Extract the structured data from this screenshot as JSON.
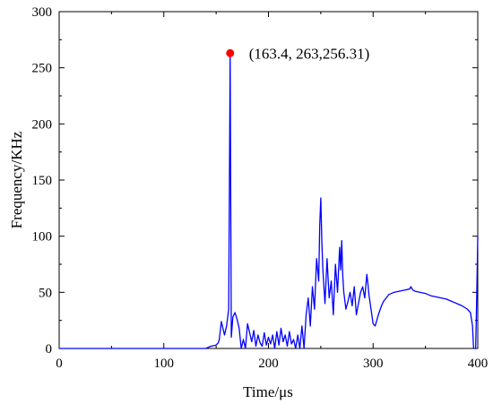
{
  "chart_data": {
    "type": "line",
    "xlabel": "Time/μs",
    "ylabel": "Frequency/KHz",
    "xlim": [
      0,
      400
    ],
    "ylim": [
      0,
      300
    ],
    "xticks": [
      0,
      100,
      200,
      300,
      400
    ],
    "yticks": [
      0,
      50,
      100,
      150,
      200,
      250,
      300
    ],
    "grid": false,
    "series": [
      {
        "color": "#0000ff",
        "x": [
          0,
          50,
          100,
          140,
          145,
          150,
          152,
          153,
          155,
          158,
          160,
          162,
          163.4,
          164.5,
          166,
          168,
          170,
          172,
          174,
          176,
          178,
          180,
          182,
          184,
          186,
          188,
          190,
          192,
          194,
          196,
          198,
          200,
          202,
          204,
          206,
          208,
          210,
          212,
          214,
          216,
          218,
          220,
          222,
          224,
          226,
          228,
          230,
          232,
          234,
          236,
          238,
          240,
          242,
          244,
          246,
          248,
          249,
          250,
          251,
          252,
          254,
          256,
          258,
          260,
          262,
          264,
          266,
          268,
          269,
          270,
          271,
          272,
          274,
          276,
          278,
          280,
          282,
          284,
          286,
          288,
          290,
          292,
          294,
          295,
          296,
          298,
          300,
          302,
          305,
          308,
          310,
          315,
          320,
          325,
          330,
          335,
          336,
          338,
          340,
          345,
          350,
          355,
          360,
          365,
          370,
          375,
          380,
          385,
          390,
          393,
          395,
          396,
          397,
          398,
          399,
          400
        ],
        "y": [
          0,
          0,
          0,
          0,
          2,
          3,
          5,
          8,
          24,
          12,
          20,
          35,
          263,
          10,
          28,
          32,
          26,
          18,
          0,
          8,
          0,
          22,
          14,
          6,
          16,
          2,
          12,
          5,
          2,
          14,
          3,
          10,
          4,
          12,
          0,
          15,
          3,
          18,
          6,
          12,
          2,
          15,
          4,
          8,
          0,
          12,
          0,
          20,
          0,
          30,
          45,
          20,
          55,
          35,
          80,
          60,
          110,
          134,
          95,
          70,
          40,
          80,
          45,
          60,
          30,
          75,
          50,
          90,
          70,
          96,
          65,
          50,
          35,
          42,
          50,
          38,
          55,
          30,
          40,
          50,
          55,
          45,
          66,
          58,
          48,
          35,
          22,
          20,
          30,
          38,
          42,
          48,
          50,
          51,
          52,
          53,
          55,
          52,
          51,
          50,
          49,
          47,
          46,
          45,
          44,
          42,
          40,
          38,
          35,
          32,
          20,
          0,
          0,
          0,
          45,
          100
        ]
      }
    ],
    "annotation": {
      "x": 163.4,
      "y": 263,
      "marker_color": "#ff0000",
      "text": "(163.4, 263,256.31)"
    }
  }
}
